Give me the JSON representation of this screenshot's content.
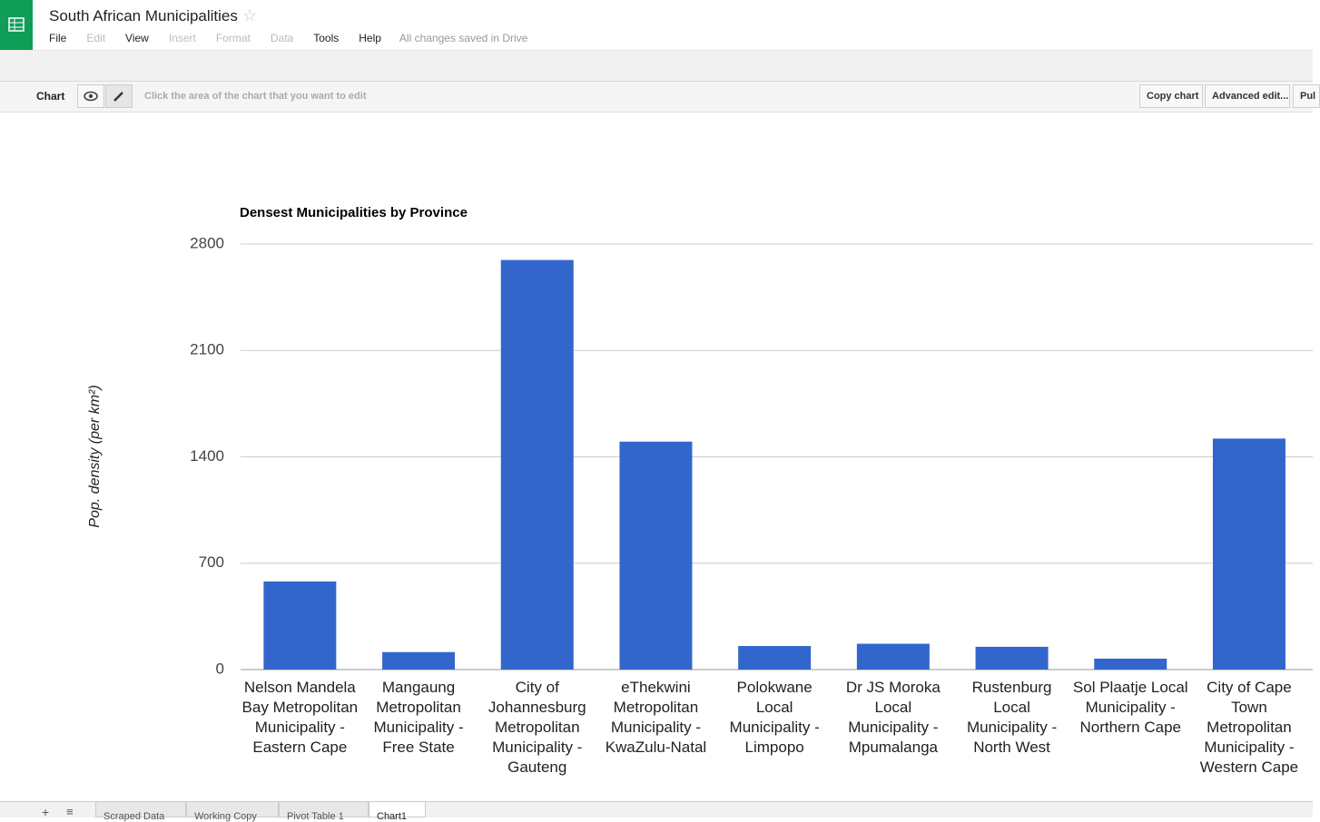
{
  "app": {
    "title": "South African Municipalities",
    "menu": [
      {
        "label": "File",
        "enabled": true
      },
      {
        "label": "Edit",
        "enabled": false
      },
      {
        "label": "View",
        "enabled": true
      },
      {
        "label": "Insert",
        "enabled": false
      },
      {
        "label": "Format",
        "enabled": false
      },
      {
        "label": "Data",
        "enabled": false
      },
      {
        "label": "Tools",
        "enabled": true
      },
      {
        "label": "Help",
        "enabled": true
      }
    ],
    "status": "All changes saved in Drive",
    "chart_toolbar": {
      "label": "Chart",
      "hint": "Click the area of the chart that you want to edit",
      "buttons": [
        "Copy chart",
        "Advanced edit...",
        "Pul"
      ]
    },
    "sheet_tabs": [
      "Scraped Data",
      "Working Copy",
      "Pivot Table 1",
      "Chart1"
    ]
  },
  "chart_data": {
    "type": "bar",
    "title": "Densest Municipalities by Province",
    "y_label": "Pop. density (per km²)",
    "categories": [
      "Nelson Mandela Bay Metropolitan Municipality - Eastern Cape",
      "Mangaung Metropolitan Municipality - Free State",
      "City of Johannesburg Metropolitan Municipality - Gauteng",
      "eThekwini Metropolitan Municipality - KwaZulu-Natal",
      "Polokwane Local Municipality - Limpopo",
      "Dr JS Moroka Local Municipality - Mpumalanga",
      "Rustenburg Local Municipality - North West",
      "Sol Plaatje Local Municipality - Northern Cape",
      "City of Cape Town Metropolitan Municipality - Western Cape"
    ],
    "values": [
      580,
      115,
      2695,
      1500,
      155,
      170,
      150,
      72,
      1520
    ],
    "color": "#3366cc",
    "ylim": [
      0,
      2800
    ],
    "yticks": [
      0,
      700,
      1400,
      2100,
      2800
    ],
    "grid": true
  }
}
